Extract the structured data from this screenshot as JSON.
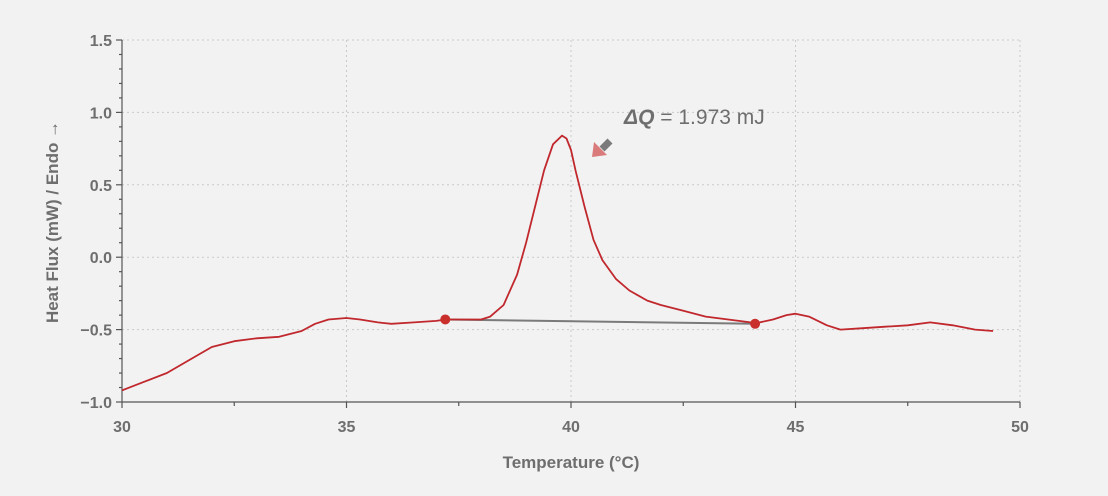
{
  "chart_data": {
    "type": "line",
    "title": "",
    "xlabel": "Temperature (°C)",
    "ylabel": "Heat Flux (mW) / Endo →",
    "xlim": [
      30,
      50
    ],
    "ylim": [
      -1.0,
      1.5
    ],
    "x_ticks": [
      30,
      35,
      40,
      45,
      50
    ],
    "x_tick_labels": [
      "30",
      "35",
      "40",
      "45",
      "50"
    ],
    "y_ticks": [
      -1.0,
      -0.5,
      0.0,
      0.5,
      1.0,
      1.5
    ],
    "y_tick_labels": [
      "−1.0",
      "−0.5",
      "0.0",
      "0.5",
      "1.0",
      "1.5"
    ],
    "grid": true,
    "series": [
      {
        "color": "#c0282d",
        "x": [
          30.0,
          30.5,
          31.0,
          31.5,
          32.0,
          32.5,
          33.0,
          33.5,
          34.0,
          34.3,
          34.6,
          35.0,
          35.3,
          35.7,
          36.0,
          36.5,
          37.0,
          37.2,
          37.5,
          38.0,
          38.2,
          38.5,
          38.8,
          39.0,
          39.2,
          39.4,
          39.6,
          39.8,
          39.9,
          40.0,
          40.1,
          40.3,
          40.5,
          40.7,
          41.0,
          41.3,
          41.7,
          42.0,
          42.5,
          43.0,
          43.5,
          44.0,
          44.2,
          44.5,
          44.8,
          45.0,
          45.3,
          45.7,
          46.0,
          46.5,
          47.0,
          47.5,
          48.0,
          48.5,
          49.0,
          49.4
        ],
        "y": [
          -0.92,
          -0.86,
          -0.8,
          -0.71,
          -0.62,
          -0.58,
          -0.56,
          -0.55,
          -0.51,
          -0.46,
          -0.43,
          -0.42,
          -0.43,
          -0.45,
          -0.46,
          -0.45,
          -0.44,
          -0.43,
          -0.43,
          -0.43,
          -0.41,
          -0.33,
          -0.12,
          0.1,
          0.35,
          0.6,
          0.78,
          0.84,
          0.82,
          0.74,
          0.6,
          0.35,
          0.12,
          -0.02,
          -0.15,
          -0.23,
          -0.3,
          -0.33,
          -0.37,
          -0.41,
          -0.43,
          -0.45,
          -0.45,
          -0.43,
          -0.4,
          -0.39,
          -0.41,
          -0.47,
          -0.5,
          -0.49,
          -0.48,
          -0.47,
          -0.45,
          -0.47,
          -0.5,
          -0.51
        ]
      }
    ],
    "baseline": {
      "color": "#7a7a7a",
      "x": [
        37.2,
        44.1
      ],
      "y": [
        -0.43,
        -0.46
      ]
    },
    "markers": {
      "color": "#c9302c",
      "x": [
        37.2,
        44.1
      ],
      "y": [
        -0.43,
        -0.46
      ]
    },
    "annotation": {
      "symbol": "ΔQ",
      "text": " = 1.973 mJ",
      "arrow_color": "#d97b7b"
    }
  }
}
